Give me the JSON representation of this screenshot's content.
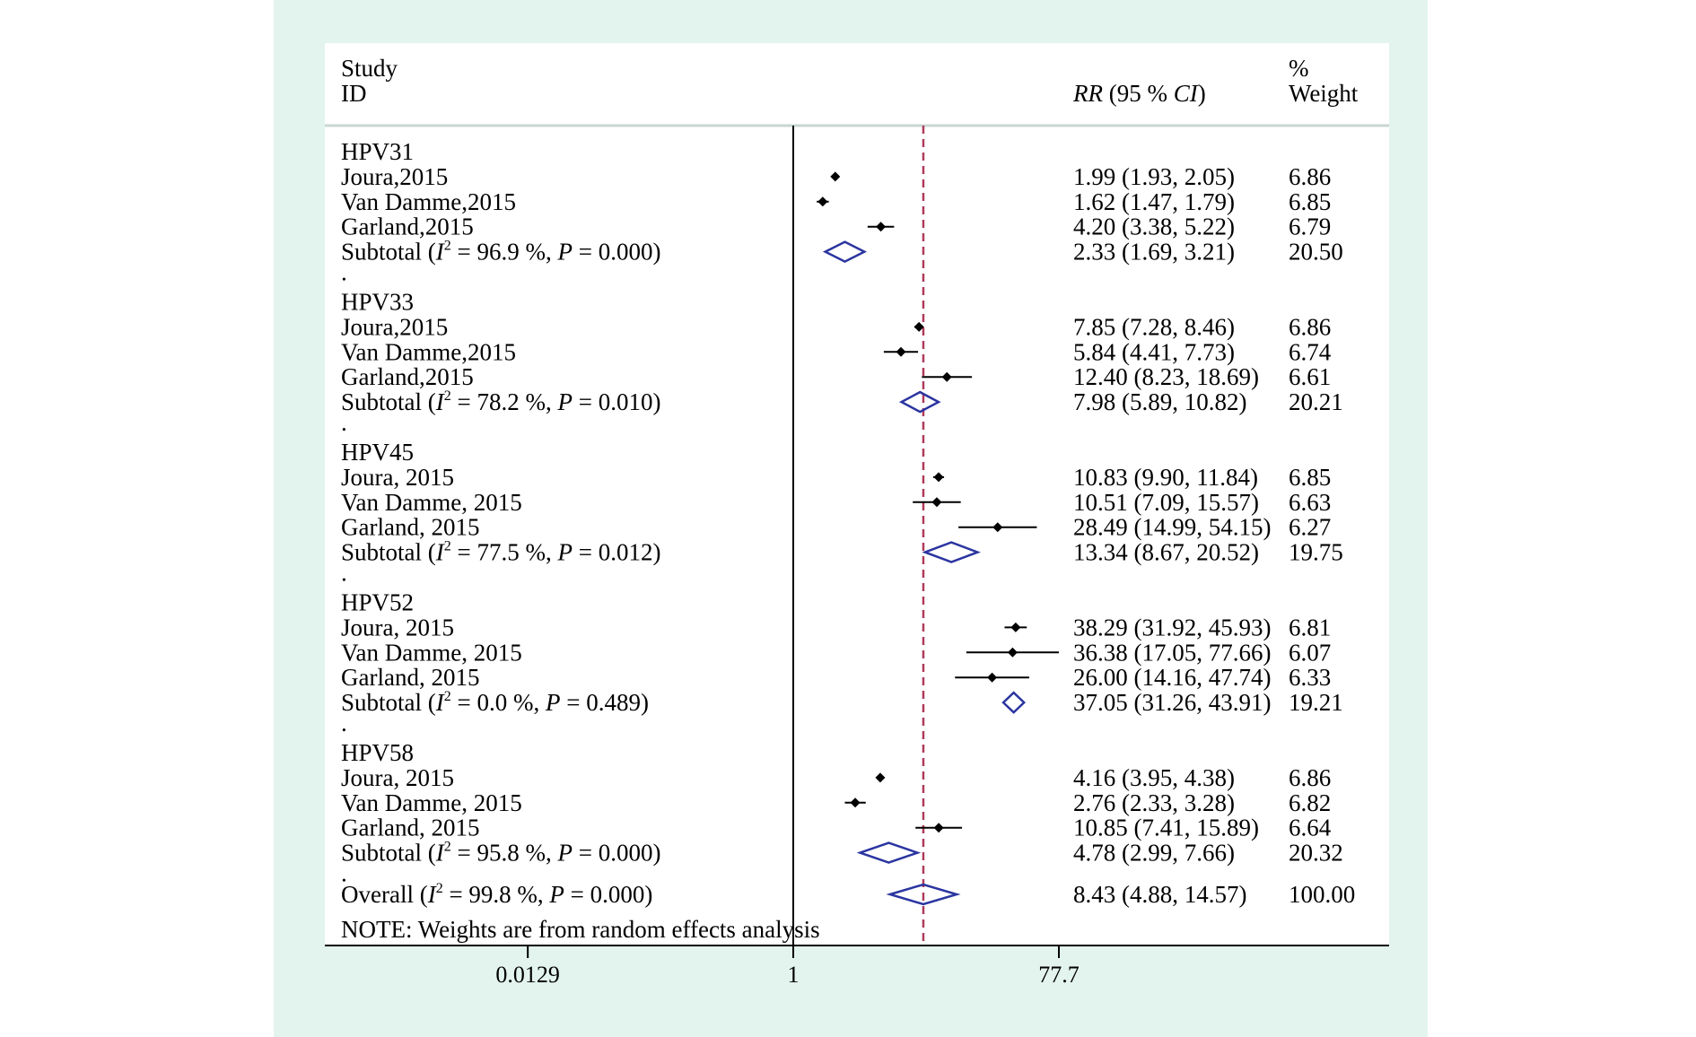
{
  "header": {
    "study": "Study",
    "id": "ID",
    "rr_label_italic": "RR",
    "rr_label_rest": " (95 % ",
    "ci_italic": "CI",
    "rr_close": ")",
    "pct": "%",
    "weight": "Weight"
  },
  "note": "NOTE: Weights are from random effects analysis",
  "colors": {
    "panel": "#e3f4ef",
    "plot_bg": "#ffffff",
    "diamond": "#2b35a0",
    "null_line": "#b03a5b",
    "marker": "#000000"
  },
  "chart_data": {
    "type": "forest",
    "scale": "log",
    "x_ticks": [
      {
        "value": 0.0129,
        "label": "0.0129"
      },
      {
        "value": 1,
        "label": "1"
      },
      {
        "value": 77.7,
        "label": "77.7"
      }
    ],
    "null_line": 1,
    "overall_line": 8.43,
    "groups": [
      {
        "name": "HPV31",
        "studies": [
          {
            "label": "Joura,2015",
            "rr": 1.99,
            "lo": 1.93,
            "hi": 2.05,
            "ci_text": "1.99 (1.93, 2.05)",
            "weight": "6.86"
          },
          {
            "label": "Van Damme,2015",
            "rr": 1.62,
            "lo": 1.47,
            "hi": 1.79,
            "ci_text": "1.62 (1.47, 1.79)",
            "weight": "6.85"
          },
          {
            "label": "Garland,2015",
            "rr": 4.2,
            "lo": 3.38,
            "hi": 5.22,
            "ci_text": "4.20 (3.38, 5.22)",
            "weight": "6.79"
          }
        ],
        "subtotal": {
          "i2": "96.9",
          "p": "0.000",
          "rr": 2.33,
          "lo": 1.69,
          "hi": 3.21,
          "ci_text": "2.33 (1.69, 3.21)",
          "weight": "20.50"
        }
      },
      {
        "name": "HPV33",
        "studies": [
          {
            "label": "Joura,2015",
            "rr": 7.85,
            "lo": 7.28,
            "hi": 8.46,
            "ci_text": "7.85 (7.28, 8.46)",
            "weight": "6.86"
          },
          {
            "label": "Van Damme,2015",
            "rr": 5.84,
            "lo": 4.41,
            "hi": 7.73,
            "ci_text": "5.84 (4.41, 7.73)",
            "weight": "6.74"
          },
          {
            "label": "Garland,2015",
            "rr": 12.4,
            "lo": 8.23,
            "hi": 18.69,
            "ci_text": "12.40 (8.23, 18.69)",
            "weight": "6.61"
          }
        ],
        "subtotal": {
          "i2": "78.2",
          "p": "0.010",
          "rr": 7.98,
          "lo": 5.89,
          "hi": 10.82,
          "ci_text": "7.98 (5.89, 10.82)",
          "weight": "20.21"
        }
      },
      {
        "name": "HPV45",
        "studies": [
          {
            "label": "Joura, 2015",
            "rr": 10.83,
            "lo": 9.9,
            "hi": 11.84,
            "ci_text": "10.83 (9.90, 11.84)",
            "weight": "6.85"
          },
          {
            "label": "Van Damme, 2015",
            "rr": 10.51,
            "lo": 7.09,
            "hi": 15.57,
            "ci_text": "10.51 (7.09, 15.57)",
            "weight": "6.63"
          },
          {
            "label": "Garland, 2015",
            "rr": 28.49,
            "lo": 14.99,
            "hi": 54.15,
            "ci_text": "28.49 (14.99, 54.15)",
            "weight": "6.27"
          }
        ],
        "subtotal": {
          "i2": "77.5",
          "p": "0.012",
          "rr": 13.34,
          "lo": 8.67,
          "hi": 20.52,
          "ci_text": "13.34 (8.67, 20.52)",
          "weight": "19.75"
        }
      },
      {
        "name": "HPV52",
        "studies": [
          {
            "label": "Joura, 2015",
            "rr": 38.29,
            "lo": 31.92,
            "hi": 45.93,
            "ci_text": "38.29 (31.92, 45.93)",
            "weight": "6.81"
          },
          {
            "label": "Van Damme, 2015",
            "rr": 36.38,
            "lo": 17.05,
            "hi": 77.66,
            "ci_text": "36.38 (17.05, 77.66)",
            "weight": "6.07"
          },
          {
            "label": "Garland, 2015",
            "rr": 26.0,
            "lo": 14.16,
            "hi": 47.74,
            "ci_text": "26.00 (14.16, 47.74)",
            "weight": "6.33"
          }
        ],
        "subtotal": {
          "i2": "0.0",
          "p": "0.489",
          "rr": 37.05,
          "lo": 31.26,
          "hi": 43.91,
          "ci_text": "37.05 (31.26, 43.91)",
          "weight": "19.21"
        }
      },
      {
        "name": "HPV58",
        "studies": [
          {
            "label": "Joura, 2015",
            "rr": 4.16,
            "lo": 3.95,
            "hi": 4.38,
            "ci_text": "4.16 (3.95, 4.38)",
            "weight": "6.86"
          },
          {
            "label": "Van Damme, 2015",
            "rr": 2.76,
            "lo": 2.33,
            "hi": 3.28,
            "ci_text": "2.76 (2.33, 3.28)",
            "weight": "6.82"
          },
          {
            "label": "Garland, 2015",
            "rr": 10.85,
            "lo": 7.41,
            "hi": 15.89,
            "ci_text": "10.85 (7.41, 15.89)",
            "weight": "6.64"
          }
        ],
        "subtotal": {
          "i2": "95.8",
          "p": "0.000",
          "rr": 4.78,
          "lo": 2.99,
          "hi": 7.66,
          "ci_text": "4.78 (2.99, 7.66)",
          "weight": "20.32"
        }
      }
    ],
    "overall": {
      "label": "Overall",
      "i2": "99.8",
      "p": "0.000",
      "rr": 8.43,
      "lo": 4.88,
      "hi": 14.57,
      "ci_text": "8.43 (4.88, 14.57)",
      "weight": "100.00"
    }
  }
}
